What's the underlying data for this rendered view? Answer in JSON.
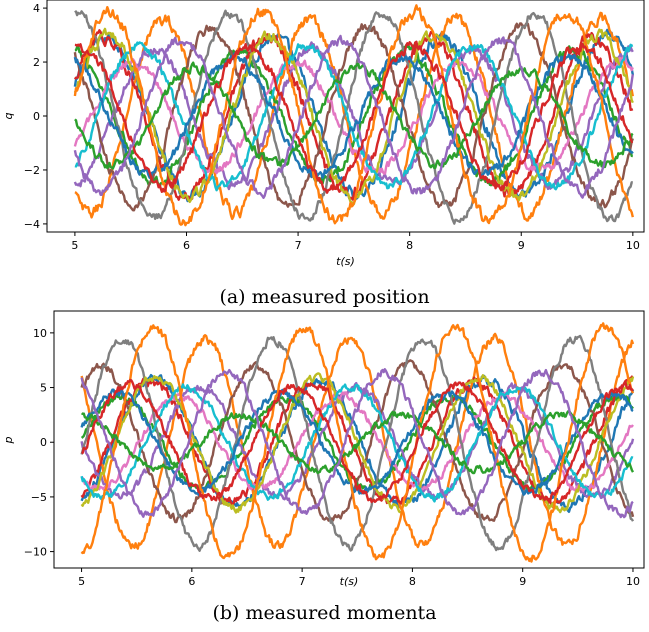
{
  "chart_data": [
    {
      "type": "line",
      "caption": "(a) measured position",
      "xlabel": "t(s)",
      "ylabel": "q",
      "xlim": [
        4.75,
        10.1
      ],
      "ylim": [
        -4.3,
        4.3
      ],
      "xticks": [
        5,
        6,
        7,
        8,
        9,
        10
      ],
      "yticks": [
        -4,
        -2,
        0,
        2,
        4
      ],
      "grid": false,
      "series": [
        {
          "color": "#1f77b4",
          "amplitude": 2.9,
          "omega": 4.2,
          "phase": 4.5,
          "noise": 0.18
        },
        {
          "color": "#ff7f0e",
          "amplitude": 3.6,
          "omega": 4.8,
          "phase": 5.2,
          "noise": 0.18
        },
        {
          "color": "#2ca02c",
          "amplitude": 2.4,
          "omega": 4.2,
          "phase": 5.8,
          "noise": 0.16
        },
        {
          "color": "#d62728",
          "amplitude": 2.9,
          "omega": 4.3,
          "phase": 4.1,
          "noise": 0.18
        },
        {
          "color": "#9467bd",
          "amplitude": 2.5,
          "omega": 4.4,
          "phase": 1.6,
          "noise": 0.16
        },
        {
          "color": "#8c564b",
          "amplitude": 3.3,
          "omega": 4.5,
          "phase": 5.0,
          "noise": 0.16
        },
        {
          "color": "#e377c2",
          "amplitude": 2.0,
          "omega": 4.3,
          "phase": 3.0,
          "noise": 0.14
        },
        {
          "color": "#7f7f7f",
          "amplitude": 3.8,
          "omega": 4.6,
          "phase": 3.6,
          "noise": 0.14
        },
        {
          "color": "#bcbd22",
          "amplitude": 3.0,
          "omega": 4.3,
          "phase": 3.9,
          "noise": 0.16
        },
        {
          "color": "#17becf",
          "amplitude": 2.6,
          "omega": 4.2,
          "phase": 3.3,
          "noise": 0.14
        },
        {
          "color": "#1f77b4",
          "amplitude": 2.2,
          "omega": 4.2,
          "phase": 6.0,
          "noise": 0.16
        },
        {
          "color": "#ff7f0e",
          "amplitude": 3.9,
          "omega": 4.6,
          "phase": 2.3,
          "noise": 0.18
        },
        {
          "color": "#2ca02c",
          "amplitude": 1.8,
          "omega": 4.3,
          "phase": 0.6,
          "noise": 0.14
        },
        {
          "color": "#d62728",
          "amplitude": 2.6,
          "omega": 4.2,
          "phase": 5.5,
          "noise": 0.16
        },
        {
          "color": "#9467bd",
          "amplitude": 2.8,
          "omega": 4.4,
          "phase": 0.5,
          "noise": 0.16
        }
      ]
    },
    {
      "type": "line",
      "caption": "(b) measured momenta",
      "xlabel": "t(s)",
      "ylabel": "p",
      "xlim": [
        4.75,
        10.1
      ],
      "ylim": [
        -11.5,
        12
      ],
      "xticks": [
        5,
        6,
        7,
        8,
        9,
        10
      ],
      "yticks": [
        -10,
        -5,
        0,
        5,
        10
      ],
      "grid": false,
      "series": [
        {
          "color": "#1f77b4",
          "amplitude": 5.8,
          "omega": 4.2,
          "phase": 2.9,
          "noise": 0.35
        },
        {
          "color": "#ff7f0e",
          "amplitude": 9.5,
          "omega": 4.8,
          "phase": 3.6,
          "noise": 0.35
        },
        {
          "color": "#2ca02c",
          "amplitude": 4.2,
          "omega": 4.2,
          "phase": 4.2,
          "noise": 0.3
        },
        {
          "color": "#d62728",
          "amplitude": 5.5,
          "omega": 4.3,
          "phase": 2.5,
          "noise": 0.35
        },
        {
          "color": "#9467bd",
          "amplitude": 5.0,
          "omega": 4.4,
          "phase": 0.0,
          "noise": 0.3
        },
        {
          "color": "#8c564b",
          "amplitude": 7.0,
          "omega": 4.5,
          "phase": 3.4,
          "noise": 0.3
        },
        {
          "color": "#e377c2",
          "amplitude": 4.2,
          "omega": 4.3,
          "phase": 1.4,
          "noise": 0.28
        },
        {
          "color": "#7f7f7f",
          "amplitude": 9.5,
          "omega": 4.6,
          "phase": 2.0,
          "noise": 0.3
        },
        {
          "color": "#bcbd22",
          "amplitude": 6.0,
          "omega": 4.3,
          "phase": 2.3,
          "noise": 0.3
        },
        {
          "color": "#17becf",
          "amplitude": 5.0,
          "omega": 4.2,
          "phase": 1.7,
          "noise": 0.28
        },
        {
          "color": "#1f77b4",
          "amplitude": 4.5,
          "omega": 4.2,
          "phase": 4.4,
          "noise": 0.3
        },
        {
          "color": "#ff7f0e",
          "amplitude": 10.5,
          "omega": 4.6,
          "phase": 0.7,
          "noise": 0.35
        },
        {
          "color": "#2ca02c",
          "amplitude": 2.5,
          "omega": 4.3,
          "phase": 5.3,
          "noise": 0.28
        },
        {
          "color": "#d62728",
          "amplitude": 5.2,
          "omega": 4.2,
          "phase": 3.9,
          "noise": 0.3
        },
        {
          "color": "#9467bd",
          "amplitude": 6.5,
          "omega": 4.4,
          "phase": 5.2,
          "noise": 0.3
        }
      ]
    }
  ]
}
